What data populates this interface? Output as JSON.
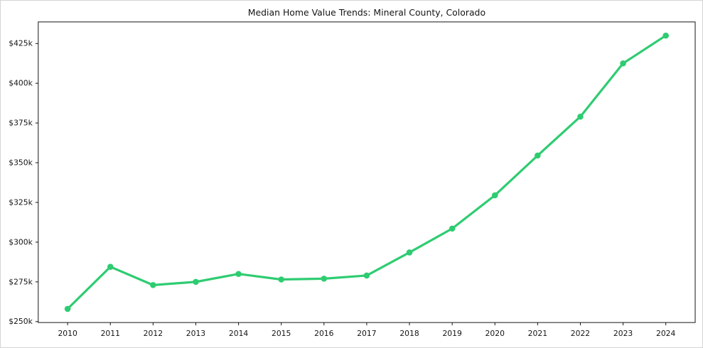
{
  "chart_data": {
    "type": "line",
    "title": "Median Home Value Trends: Mineral County, Colorado",
    "xlabel": "",
    "ylabel": "",
    "grid": false,
    "legend_position": "none",
    "line_color": "#2ecc71",
    "marker": "circle",
    "x": [
      2010,
      2011,
      2012,
      2013,
      2014,
      2015,
      2016,
      2017,
      2018,
      2019,
      2020,
      2021,
      2022,
      2023,
      2024
    ],
    "x_tick_labels": [
      "2010",
      "2011",
      "2012",
      "2013",
      "2014",
      "2015",
      "2016",
      "2017",
      "2018",
      "2019",
      "2020",
      "2021",
      "2022",
      "2023",
      "2024"
    ],
    "series": [
      {
        "name": "Median Home Value",
        "values": [
          258000,
          284500,
          273000,
          275000,
          280000,
          276500,
          277000,
          279000,
          293500,
          308500,
          329500,
          354500,
          379000,
          412500,
          430000
        ]
      }
    ],
    "ylim": [
      249400,
      438600
    ],
    "y_ticks": [
      {
        "value": 250000,
        "label": "$250k"
      },
      {
        "value": 275000,
        "label": "$275k"
      },
      {
        "value": 300000,
        "label": "$300k"
      },
      {
        "value": 325000,
        "label": "$325k"
      },
      {
        "value": 350000,
        "label": "$350k"
      },
      {
        "value": 375000,
        "label": "$375k"
      },
      {
        "value": 400000,
        "label": "$400k"
      },
      {
        "value": 425000,
        "label": "$425k"
      }
    ]
  }
}
